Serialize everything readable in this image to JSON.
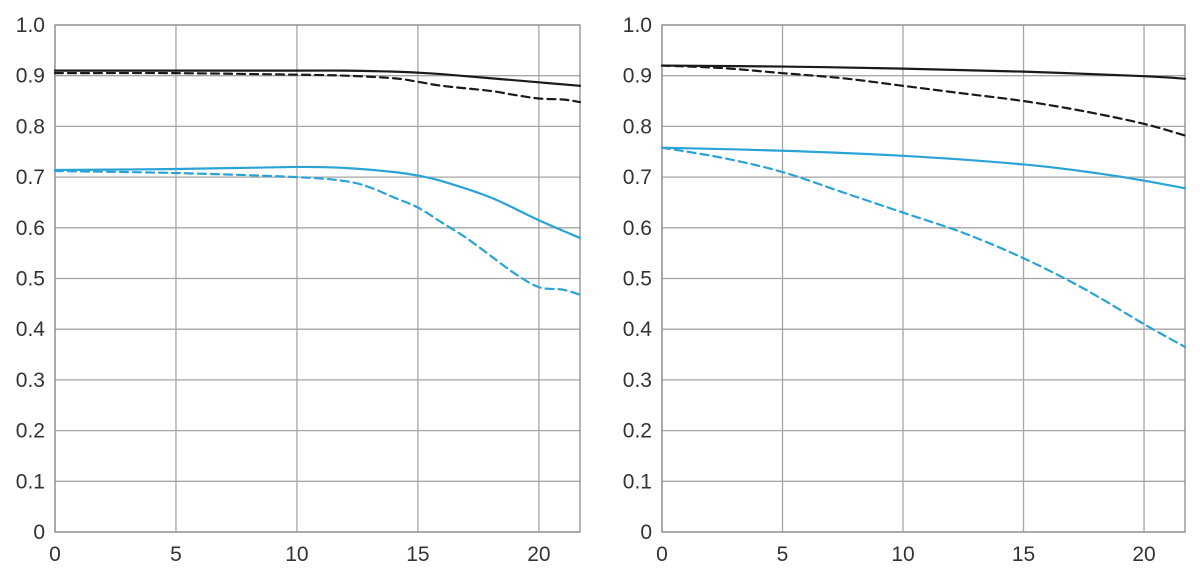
{
  "colors": {
    "black": "#1a1a1a",
    "blue": "#2aa3d6",
    "grid": "#a6a6a6"
  },
  "chart_data": [
    {
      "type": "line",
      "title": "",
      "xlabel": "",
      "ylabel": "",
      "xlim": [
        0,
        21.7
      ],
      "ylim": [
        0,
        1.0
      ],
      "grid": true,
      "legend": "none",
      "x_ticks": [
        0,
        5,
        10,
        15,
        20
      ],
      "x_tick_labels": [
        "0",
        "5",
        "10",
        "15",
        "20"
      ],
      "y_ticks": [
        0,
        0.1,
        0.2,
        0.3,
        0.4,
        0.5,
        0.6,
        0.7,
        0.8,
        0.9,
        1.0
      ],
      "y_tick_labels": [
        "0",
        "0.1",
        "0.2",
        "0.3",
        "0.4",
        "0.5",
        "0.6",
        "0.7",
        "0.8",
        "0.9",
        "1.0"
      ],
      "series": [
        {
          "color": "#1a1a1a",
          "dash": "solid",
          "x": [
            0,
            5,
            10,
            12,
            14,
            15,
            16,
            18,
            20,
            21.7
          ],
          "y": [
            0.91,
            0.91,
            0.91,
            0.91,
            0.908,
            0.906,
            0.903,
            0.895,
            0.887,
            0.88
          ]
        },
        {
          "color": "#1a1a1a",
          "dash": "dashed",
          "x": [
            0,
            5,
            10,
            12,
            14,
            15,
            16,
            18,
            19,
            20,
            21,
            21.7
          ],
          "y": [
            0.905,
            0.905,
            0.902,
            0.9,
            0.895,
            0.888,
            0.88,
            0.87,
            0.862,
            0.855,
            0.853,
            0.848
          ]
        },
        {
          "color": "#2aa3d6",
          "dash": "solid",
          "x": [
            0,
            5,
            10,
            12,
            14,
            15,
            16,
            18,
            20,
            21.7
          ],
          "y": [
            0.714,
            0.716,
            0.72,
            0.718,
            0.71,
            0.703,
            0.692,
            0.66,
            0.615,
            0.58
          ]
        },
        {
          "color": "#2aa3d6",
          "dash": "dashed",
          "x": [
            0,
            5,
            10,
            12,
            13,
            14,
            15,
            16,
            17,
            18,
            19,
            20,
            21,
            21.7
          ],
          "y": [
            0.712,
            0.708,
            0.7,
            0.692,
            0.68,
            0.66,
            0.64,
            0.61,
            0.58,
            0.545,
            0.51,
            0.483,
            0.478,
            0.468
          ]
        }
      ]
    },
    {
      "type": "line",
      "title": "",
      "xlabel": "",
      "ylabel": "",
      "xlim": [
        0,
        21.7
      ],
      "ylim": [
        0,
        1.0
      ],
      "grid": true,
      "legend": "none",
      "x_ticks": [
        0,
        5,
        10,
        15,
        20
      ],
      "x_tick_labels": [
        "0",
        "5",
        "10",
        "15",
        "20"
      ],
      "y_ticks": [
        0,
        0.1,
        0.2,
        0.3,
        0.4,
        0.5,
        0.6,
        0.7,
        0.8,
        0.9,
        1.0
      ],
      "y_tick_labels": [
        "0",
        "0.1",
        "0.2",
        "0.3",
        "0.4",
        "0.5",
        "0.6",
        "0.7",
        "0.8",
        "0.9",
        "1.0"
      ],
      "series": [
        {
          "color": "#1a1a1a",
          "dash": "solid",
          "x": [
            0,
            5,
            10,
            15,
            20,
            21.7
          ],
          "y": [
            0.92,
            0.918,
            0.914,
            0.908,
            0.899,
            0.894
          ]
        },
        {
          "color": "#1a1a1a",
          "dash": "dashed",
          "x": [
            0,
            2.5,
            5,
            7.5,
            10,
            12.5,
            15,
            17.5,
            20,
            21.7
          ],
          "y": [
            0.92,
            0.915,
            0.905,
            0.895,
            0.88,
            0.865,
            0.85,
            0.83,
            0.805,
            0.782
          ]
        },
        {
          "color": "#2aa3d6",
          "dash": "solid",
          "x": [
            0,
            5,
            10,
            15,
            18,
            20,
            21.7
          ],
          "y": [
            0.758,
            0.752,
            0.742,
            0.725,
            0.708,
            0.693,
            0.678
          ]
        },
        {
          "color": "#2aa3d6",
          "dash": "dashed",
          "x": [
            0,
            2.5,
            5,
            7.5,
            10,
            12.5,
            15,
            17.5,
            20,
            21.7
          ],
          "y": [
            0.758,
            0.738,
            0.71,
            0.67,
            0.63,
            0.59,
            0.54,
            0.48,
            0.41,
            0.365
          ]
        }
      ]
    }
  ]
}
